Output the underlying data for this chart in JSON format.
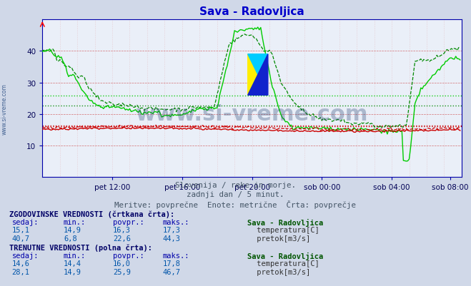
{
  "title": "Sava - Radovljica",
  "title_color": "#0000cc",
  "bg_color": "#d0d8e8",
  "plot_bg_color": "#eaeff8",
  "fig_width": 6.59,
  "fig_height": 4.02,
  "dpi": 100,
  "xlabel_ticks": [
    "pet 12:00",
    "pet 16:00",
    "pet 20:00",
    "sob 00:00",
    "sob 04:00",
    "sob 08:00"
  ],
  "ylabel_ticks": [
    10,
    20,
    30,
    40
  ],
  "ylim": [
    0,
    50
  ],
  "xlim": [
    0,
    288
  ],
  "subtitle1": "Slovenija / reke in morje.",
  "subtitle2": "zadnji dan / 5 minut.",
  "subtitle3": "Meritve: povprečne  Enote: metrične  Črta: povprečje",
  "subtitle_color": "#445566",
  "watermark": "www.si-vreme.com",
  "watermark_color": "#1a3a6a",
  "watermark_alpha": 0.3,
  "temp_hist_color": "#cc0000",
  "temp_curr_color": "#cc0000",
  "flow_hist_color": "#008800",
  "flow_curr_color": "#00cc00",
  "flow_hist_avg": 22.6,
  "flow_curr_avg": 25.9,
  "temp_hist_avg": 16.3,
  "temp_curr_avg": 16.0,
  "table_header_color": "#000066",
  "table_label_color": "#0000aa",
  "table_value_color": "#0055aa",
  "table_station_color": "#005500",
  "table_text_color": "#333333",
  "table_red_color": "#cc0000",
  "table_green_color": "#00aa00",
  "side_text_color": "#335588",
  "hist_header": "ZGODOVINSKE VREDNOSTI (črtkana črta):",
  "curr_header": "TRENUTNE VREDNOSTI (polna črta):",
  "col_headers": [
    "sedaj:",
    "min.:",
    "povpr.:",
    "maks.:"
  ],
  "station_name": "Sava - Radovljica",
  "hist_temp_vals": [
    "15,1",
    "14,9",
    "16,3",
    "17,3"
  ],
  "hist_flow_vals": [
    "40,7",
    "6,8",
    "22,6",
    "44,3"
  ],
  "curr_temp_vals": [
    "14,6",
    "14,4",
    "16,0",
    "17,8"
  ],
  "curr_flow_vals": [
    "28,1",
    "14,9",
    "25,9",
    "46,7"
  ],
  "temp_label": "temperatura[C]",
  "flow_label": "pretok[m3/s]"
}
